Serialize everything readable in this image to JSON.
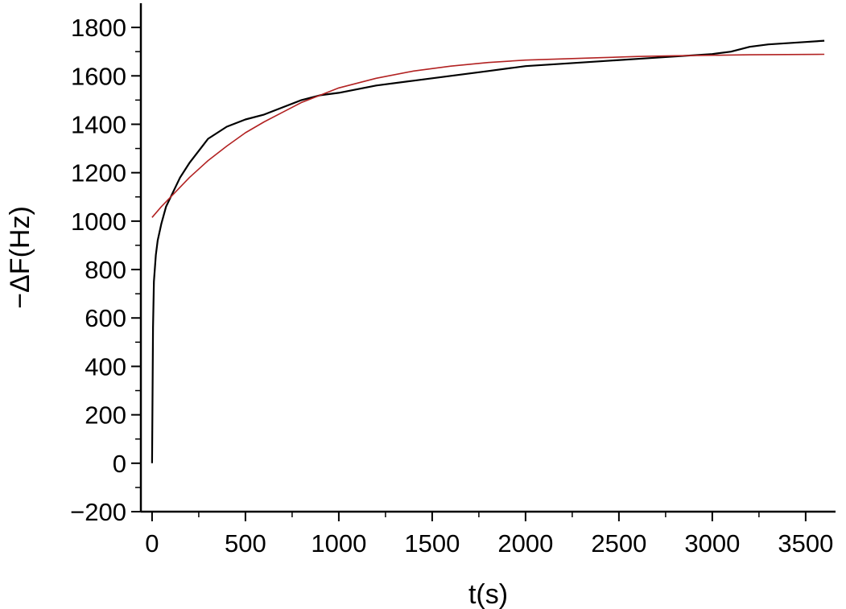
{
  "chart_data": {
    "type": "line",
    "xlabel": "t(s)",
    "ylabel": "−ΔF(Hz)",
    "xlim": [
      -60,
      3660
    ],
    "ylim": [
      -200,
      1900
    ],
    "x_ticks": [
      0,
      500,
      1000,
      1500,
      2000,
      2500,
      3000,
      3500
    ],
    "x_tick_labels": [
      "0",
      "500",
      "1000",
      "1500",
      "2000",
      "2500",
      "3000",
      "3500"
    ],
    "y_ticks": [
      -200,
      0,
      200,
      400,
      600,
      800,
      1000,
      1200,
      1400,
      1600,
      1800
    ],
    "y_tick_labels": [
      "−200",
      "0",
      "200",
      "400",
      "600",
      "800",
      "1000",
      "1200",
      "1400",
      "1600",
      "1800"
    ],
    "grid": false,
    "legend": "none",
    "series": [
      {
        "color": "#000000",
        "x": [
          0,
          5,
          10,
          20,
          30,
          50,
          75,
          100,
          150,
          200,
          250,
          300,
          400,
          500,
          600,
          700,
          800,
          900,
          1000,
          1200,
          1400,
          1500,
          1600,
          1800,
          2000,
          2200,
          2400,
          2600,
          2800,
          3000,
          3100,
          3200,
          3300,
          3400,
          3500,
          3600
        ],
        "y": [
          0,
          560,
          750,
          860,
          920,
          990,
          1060,
          1100,
          1180,
          1240,
          1290,
          1340,
          1390,
          1420,
          1440,
          1470,
          1500,
          1520,
          1530,
          1560,
          1580,
          1590,
          1600,
          1620,
          1640,
          1650,
          1660,
          1670,
          1680,
          1690,
          1700,
          1720,
          1730,
          1735,
          1740,
          1745
        ]
      },
      {
        "color": "#b22222",
        "x": [
          0,
          50,
          100,
          200,
          300,
          400,
          500,
          600,
          700,
          800,
          900,
          1000,
          1200,
          1400,
          1600,
          1800,
          2000,
          2200,
          2400,
          2600,
          2800,
          3000,
          3200,
          3400,
          3600
        ],
        "y": [
          1015,
          1060,
          1100,
          1180,
          1250,
          1310,
          1365,
          1410,
          1450,
          1490,
          1520,
          1550,
          1590,
          1620,
          1640,
          1655,
          1665,
          1670,
          1675,
          1680,
          1683,
          1685,
          1687,
          1688,
          1689
        ]
      }
    ]
  }
}
